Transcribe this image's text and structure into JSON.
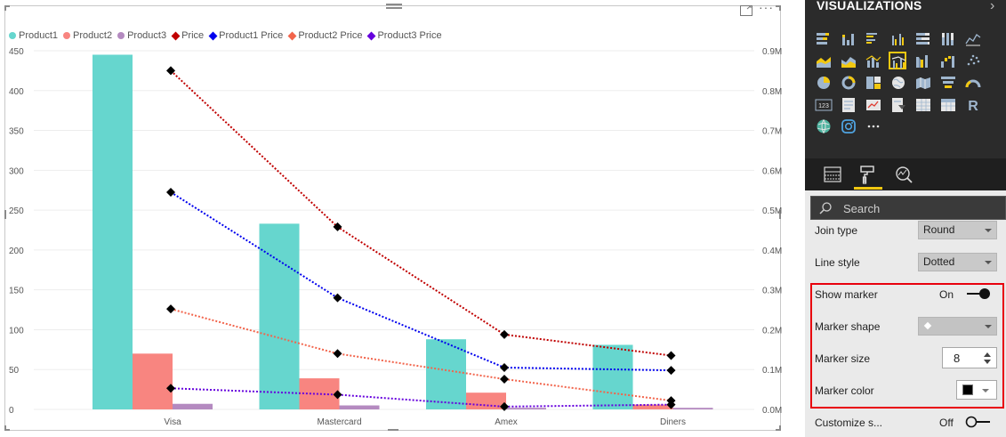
{
  "visual": {
    "legend": [
      {
        "label": "Product1",
        "color": "#66d6ce",
        "shape": "dot"
      },
      {
        "label": "Product2",
        "color": "#f88580",
        "shape": "dot"
      },
      {
        "label": "Product3",
        "color": "#b48ac0",
        "shape": "dot"
      },
      {
        "label": "Price",
        "color": "#c00000",
        "shape": "diamond"
      },
      {
        "label": "Product1 Price",
        "color": "#0000ee",
        "shape": "diamond"
      },
      {
        "label": "Product2 Price",
        "color": "#f2644b",
        "shape": "diamond"
      },
      {
        "label": "Product3 Price",
        "color": "#6600dd",
        "shape": "diamond"
      }
    ],
    "more_options_glyph": "···",
    "icons": {
      "focus": "focus-mode-icon",
      "more": "more-options-icon",
      "grip": "drag-grip-icon"
    }
  },
  "chart_data": {
    "type": "bar",
    "categories": [
      "Visa",
      "Mastercard",
      "Amex",
      "Diners"
    ],
    "series": [
      {
        "name": "Product1",
        "kind": "bar",
        "axis": "left",
        "color": "#66d6ce",
        "values": [
          445,
          233,
          88,
          81
        ]
      },
      {
        "name": "Product2",
        "kind": "bar",
        "axis": "left",
        "color": "#f88580",
        "values": [
          70,
          39,
          21,
          6
        ]
      },
      {
        "name": "Product3",
        "kind": "bar",
        "axis": "left",
        "color": "#b48ac0",
        "values": [
          7,
          5,
          2,
          2
        ]
      },
      {
        "name": "Price",
        "kind": "line",
        "axis": "right",
        "color": "#c00000",
        "values": [
          850000,
          458000,
          188000,
          135000
        ]
      },
      {
        "name": "Product1 Price",
        "kind": "line",
        "axis": "right",
        "color": "#0000ee",
        "values": [
          545000,
          280000,
          105000,
          98000
        ]
      },
      {
        "name": "Product2 Price",
        "kind": "line",
        "axis": "right",
        "color": "#f2644b",
        "values": [
          252000,
          140000,
          76000,
          22000
        ]
      },
      {
        "name": "Product3 Price",
        "kind": "line",
        "axis": "right",
        "color": "#6600dd",
        "values": [
          53000,
          37000,
          7000,
          12000
        ]
      }
    ],
    "y_left": {
      "ylim": [
        0,
        450
      ],
      "ticks": [
        "0",
        "50",
        "100",
        "150",
        "200",
        "250",
        "300",
        "350",
        "400",
        "450"
      ]
    },
    "y_right": {
      "ylim": [
        0,
        900000
      ],
      "ticks": [
        "0.0M",
        "0.1M",
        "0.2M",
        "0.3M",
        "0.4M",
        "0.5M",
        "0.6M",
        "0.7M",
        "0.8M",
        "0.9M"
      ]
    },
    "grid": true,
    "line_style": "dotted",
    "marker_shape": "diamond",
    "marker_color": "#000000",
    "legend_position": "top-left"
  },
  "pane": {
    "title": "VISUALIZATIONS",
    "chevron_glyph": "›",
    "visual_types": [
      "stacked-bar-chart-icon",
      "stacked-column-chart-icon",
      "clustered-bar-chart-icon",
      "clustered-column-chart-icon",
      "100-stacked-bar-chart-icon",
      "100-stacked-column-chart-icon",
      "line-chart-icon",
      "area-chart-icon",
      "stacked-area-chart-icon",
      "line-and-stacked-column-chart-icon",
      "line-and-clustered-column-chart-icon",
      "ribbon-chart-icon",
      "waterfall-chart-icon",
      "scatter-chart-icon",
      "pie-chart-icon",
      "donut-chart-icon",
      "treemap-icon",
      "map-icon",
      "filled-map-icon",
      "funnel-icon",
      "gauge-icon",
      "card-icon",
      "multi-row-card-icon",
      "kpi-icon",
      "slicer-icon",
      "table-icon",
      "matrix-icon",
      "r-script-visual-icon",
      "globe-map-icon",
      "custom-visual-icon",
      "more-visuals-icon"
    ],
    "selected_visual": "line-and-clustered-column-chart-icon",
    "r_glyph": "R",
    "card_glyph": "123",
    "ellipsis_glyph": "···",
    "tabs": [
      {
        "name": "fields-tab",
        "icon": "fields-icon"
      },
      {
        "name": "format-tab",
        "icon": "paint-roller-icon"
      },
      {
        "name": "analytics-tab",
        "icon": "analytics-icon"
      }
    ],
    "active_tab": "format-tab",
    "search": {
      "placeholder": "Search"
    },
    "format": {
      "join_type_label": "Join type",
      "join_type_value": "Round",
      "line_style_label": "Line style",
      "line_style_value": "Dotted",
      "show_marker_label": "Show marker",
      "show_marker_state": "On",
      "marker_shape_label": "Marker shape",
      "marker_size_label": "Marker size",
      "marker_size_value": "8",
      "marker_color_label": "Marker color",
      "marker_color_value": "#000000",
      "customize_label": "Customize s...",
      "customize_state": "Off"
    },
    "colors": {
      "accent": "#f2c811",
      "highlight": "#e8000d",
      "pane_dark": "#2b2b2b"
    }
  }
}
